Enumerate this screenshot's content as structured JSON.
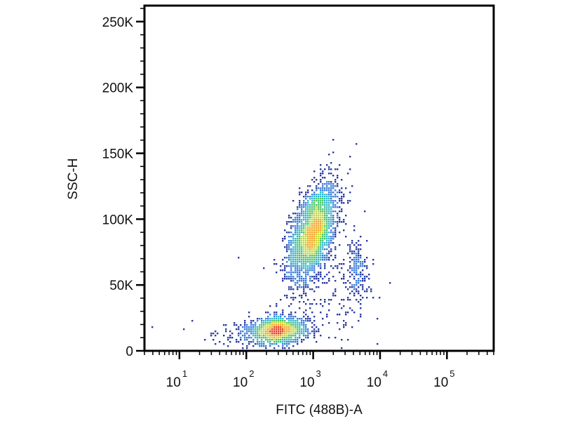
{
  "chart_data": {
    "type": "scatter",
    "subtype": "flow-cytometry density dot plot",
    "title": "",
    "xlabel": "FITC (488B)-A",
    "ylabel": "SSC-H",
    "x_scale": "log",
    "xlim": [
      3,
      500000
    ],
    "ylim": [
      0,
      262144
    ],
    "x_ticks": [
      {
        "value": 10,
        "base": "10",
        "exp": "1"
      },
      {
        "value": 100,
        "base": "10",
        "exp": "2"
      },
      {
        "value": 1000,
        "base": "10",
        "exp": "3"
      },
      {
        "value": 10000,
        "base": "10",
        "exp": "4"
      },
      {
        "value": 100000,
        "base": "10",
        "exp": "5"
      }
    ],
    "y_ticks": [
      {
        "value": 0,
        "label": "0"
      },
      {
        "value": 50000,
        "label": "50K"
      },
      {
        "value": 100000,
        "label": "100K"
      },
      {
        "value": 150000,
        "label": "150K"
      },
      {
        "value": 200000,
        "label": "200K"
      },
      {
        "value": 250000,
        "label": "250K"
      }
    ],
    "populations": [
      {
        "center_x": 1000,
        "center_y": 90000,
        "spread_log_x": 0.18,
        "spread_y": 16000,
        "tilt": 0.55,
        "events": 2600,
        "hot_spot": true
      },
      {
        "center_x": 300,
        "center_y": 15000,
        "spread_log_x": 0.22,
        "spread_y": 5000,
        "tilt": 0.15,
        "events": 1300,
        "hot_spot": true
      },
      {
        "center_x": 4500,
        "center_y": 62000,
        "spread_log_x": 0.08,
        "spread_y": 12000,
        "tilt": 0.0,
        "events": 160,
        "hot_spot": false
      },
      {
        "center_x": 2000,
        "center_y": 40000,
        "spread_log_x": 0.35,
        "spread_y": 22000,
        "tilt": 0.0,
        "events": 180,
        "hot_spot": false
      },
      {
        "center_x": 120,
        "center_y": 14000,
        "spread_log_x": 0.35,
        "spread_y": 5000,
        "tilt": 0.0,
        "events": 120,
        "hot_spot": false
      }
    ],
    "outliers": [
      {
        "x": 4,
        "y": 18000
      },
      {
        "x": 80,
        "y": 70000
      },
      {
        "x": 2000,
        "y": 150000
      },
      {
        "x": 3500,
        "y": 148000
      },
      {
        "x": 6000,
        "y": 105000
      }
    ],
    "density_colors": [
      "#2b3a9e",
      "#3b7dd8",
      "#35b8c9",
      "#49c46a",
      "#c6d83a",
      "#f2a21e",
      "#e23a1b"
    ],
    "grid": false,
    "legend": "none"
  }
}
